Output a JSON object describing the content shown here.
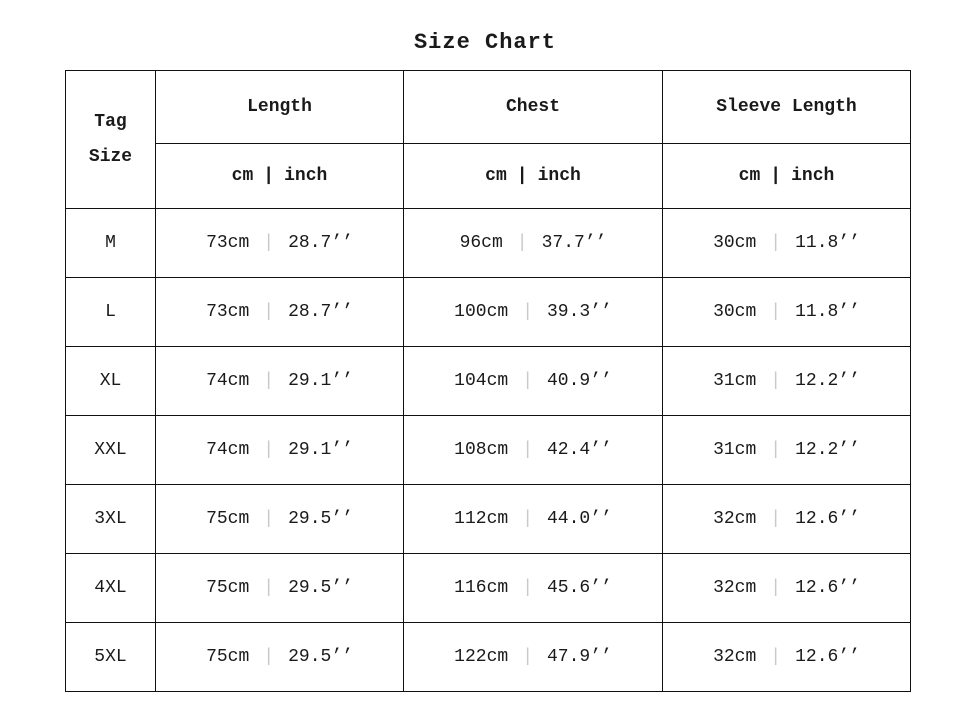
{
  "chart_data": {
    "type": "table",
    "title": "Size Chart",
    "corner_header": [
      "Tag",
      "Size"
    ],
    "column_groups": [
      "Length",
      "Chest",
      "Sleeve Length"
    ],
    "unit_header": {
      "cm": "cm",
      "separator": "|",
      "inch": "inch"
    },
    "rows": [
      {
        "size": "M",
        "length_cm": "73cm",
        "length_inch": "28.7’’",
        "chest_cm": "96cm",
        "chest_inch": "37.7’’",
        "sleeve_cm": "30cm",
        "sleeve_inch": "11.8’’"
      },
      {
        "size": "L",
        "length_cm": "73cm",
        "length_inch": "28.7’’",
        "chest_cm": "100cm",
        "chest_inch": "39.3’’",
        "sleeve_cm": "30cm",
        "sleeve_inch": "11.8’’"
      },
      {
        "size": "XL",
        "length_cm": "74cm",
        "length_inch": "29.1’’",
        "chest_cm": "104cm",
        "chest_inch": "40.9’’",
        "sleeve_cm": "31cm",
        "sleeve_inch": "12.2’’"
      },
      {
        "size": "XXL",
        "length_cm": "74cm",
        "length_inch": "29.1’’",
        "chest_cm": "108cm",
        "chest_inch": "42.4’’",
        "sleeve_cm": "31cm",
        "sleeve_inch": "12.2’’"
      },
      {
        "size": "3XL",
        "length_cm": "75cm",
        "length_inch": "29.5’’",
        "chest_cm": "112cm",
        "chest_inch": "44.0’’",
        "sleeve_cm": "32cm",
        "sleeve_inch": "12.6’’"
      },
      {
        "size": "4XL",
        "length_cm": "75cm",
        "length_inch": "29.5’’",
        "chest_cm": "116cm",
        "chest_inch": "45.6’’",
        "sleeve_cm": "32cm",
        "sleeve_inch": "12.6’’"
      },
      {
        "size": "5XL",
        "length_cm": "75cm",
        "length_inch": "29.5’’",
        "chest_cm": "122cm",
        "chest_inch": "47.9’’",
        "sleeve_cm": "32cm",
        "sleeve_inch": "12.6’’"
      }
    ],
    "colors": {
      "border": "#111111",
      "text": "#1a1a1a",
      "data_divider": "#c9c9c9"
    }
  }
}
